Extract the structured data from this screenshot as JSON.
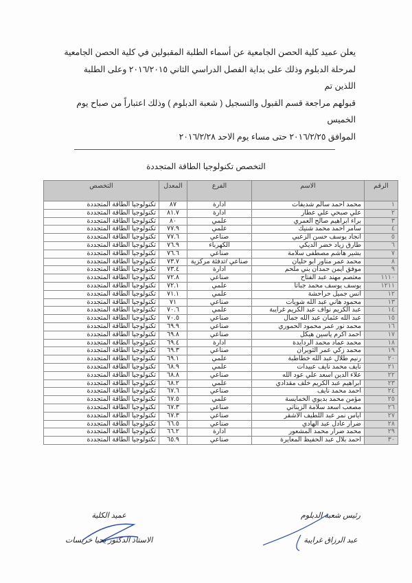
{
  "announcement": [
    "يعلن عميد كلية الحصن الجامعية عن أسماء الطلبة المقبولين في كلية الحصن الجامعية",
    "لمرحلة الدبلوم وذلك على بداية الفصل الدراسي الثاني ٢٠١٦/٢٠١٥ وعلى الطلبة اللذين تم",
    "قبولهم مراجعة قسم القبول والتسجيل ( شعبة الدبلوم ) وذلك اعتباراً من صباح يوم الخميس",
    "الموافق ٢٠١٦/٢/٢٥ حتى مساء يوم الاحد ٢٠١٦/٢/٢٨"
  ],
  "title": "التخصص تكنولوجيا الطاقة المتجددة",
  "table": {
    "headers": [
      "الرقم",
      "الاسم",
      "الفرع",
      "المعدل",
      "التخصص"
    ],
    "rows": [
      [
        "١",
        "محمد احمد سالم شديفات",
        "ادارة",
        "٨٧",
        "تكنولوجيا الطاقة المتجددة"
      ],
      [
        "٢",
        "علي صبحي علي عطار",
        "ادارة",
        "٨١.٧",
        "تكنولوجيا الطاقة المتجددة"
      ],
      [
        "٣",
        "براء ابراهيم صالح العمري",
        "علمي",
        "٨٠",
        "تكنولوجيا الطاقة المتجددة"
      ],
      [
        "٤",
        "سامر احمد محمد شنيك",
        "علمي",
        "٧٧.٩",
        "تكنولوجيا الطاقة المتجددة"
      ],
      [
        "٥",
        "انجاد يوسف حسن الزعبي",
        "صناعي",
        "٧٧.٦",
        "تكنولوجيا الطاقة المتجددة"
      ],
      [
        "٦",
        "طارق زياد خضر الديكي",
        "الكهرباء",
        "٧٦.٩",
        "تكنولوجيا الطاقة المتجددة"
      ],
      [
        "٧",
        "بشير هاشم مصطفى سلامة",
        "صناعي",
        "٧٦.٦",
        "تكنولوجيا الطاقة المتجددة"
      ],
      [
        "٨",
        "محمد عمر مناور ابو حليان",
        "صناعي /تدفئة مركزية",
        "٧٣.٧",
        "تكنولوجيا الطاقة المتجددة"
      ],
      [
        "٩",
        "موفق ايمن حمدان بني ملحم",
        "ادارة",
        "٧٣.٤",
        "تكنولوجيا الطاقة المتجددة"
      ],
      [
        "١١١٠",
        "معتصم مهند عبد الفتاح",
        "صناعي",
        "٧٢.٨",
        "تكنولوجيا الطاقة المتجددة"
      ],
      [
        "١٢١١",
        "يوسف يوسف محمد جباتا",
        "علمي",
        "٧٢.١",
        "تكنولوجيا الطاقة المتجددة"
      ],
      [
        "١٢",
        "انس جميل حراحشة",
        "علمي",
        "٧١.١",
        "تكنولوجيا الطاقة المتجددة"
      ],
      [
        "١٣",
        "محمود هاني عبد الله شويات",
        "صناعي",
        "٧١",
        "تكنولوجيا الطاقة المتجددة"
      ],
      [
        "١٤",
        "عبد الكريم نواف عبد الكريم غرايبة",
        "علمي",
        "٧٠.٦",
        "تكنولوجيا الطاقة المتجددة"
      ],
      [
        "١٥",
        "عبد الله عثمان عبد الله جمال",
        "صناعي",
        "٧٠.٥",
        "تكنولوجيا الطاقة المتجددة"
      ],
      [
        "١٦",
        "محمد نور عمر محمود الحموري",
        "صناعي",
        "٦٩.٩",
        "تكنولوجيا الطاقة المتجددة"
      ],
      [
        "١٧",
        "احمد اكرم ياسين هيكل",
        "صناعي",
        "٦٩.٨",
        "تكنولوجيا الطاقة المتجددة"
      ],
      [
        "١٨",
        "محمد عماد محمد الردايدة",
        "ادارة",
        "٦٩.٤",
        "تكنولوجيا الطاقة المتجددة"
      ],
      [
        "١٩",
        "محمد زكي عمر الثويران",
        "صناعي",
        "٦٩.٣",
        "تكنولوجيا الطاقة المتجددة"
      ],
      [
        "٢٠",
        "رنيم طلال عبد الله خطاطبة",
        "علمي",
        "٦٩.١",
        "تكنولوجيا الطاقة المتجددة"
      ],
      [
        "٢١",
        "نايف محمد نايف عبيدات",
        "علمي",
        "٦٨.٩",
        "تكنولوجيا الطاقة المتجددة"
      ],
      [
        "٢٢",
        "علاء الدين اسعد علي عود الله",
        "صناعي",
        "٦٨.٨",
        "تكنولوجيا الطاقة المتجددة"
      ],
      [
        "٢٣",
        "ابراهيم عبد الكريم خلف مقدادي",
        "علمي",
        "٦٨.٢",
        "تكنولوجيا الطاقة المتجددة"
      ],
      [
        "٢٤",
        "احمد محمد نايف",
        "صناعي",
        "٦٧.٦",
        "تكنولوجيا الطاقة المتجددة"
      ],
      [
        "٢٥",
        "مؤمن محمد بديوي الخمايسة",
        "علمي",
        "٦٧.٥",
        "تكنولوجيا الطاقة المتجددة"
      ],
      [
        "٢٦",
        "مصعب اسعد سلامة الزيناتي",
        "صناعي",
        "٦٧.٣",
        "تكنولوجيا الطاقة المتجددة"
      ],
      [
        "٢٧",
        "اياس نمر عبد اللطيف الاشقر",
        "صناعي",
        "٦٧.٣",
        "تكنولوجيا الطاقة المتجددة"
      ],
      [
        "٢٨",
        "ضرار عادل عبد الهادي",
        "صناعي",
        "٦٦.٥",
        "تكنولوجيا الطاقة المتجددة"
      ],
      [
        "٢٩",
        "محمد ضرار محمد المشعور",
        "ادارة",
        "٦٦.٢",
        "تكنولوجيا الطاقة المتجددة"
      ],
      [
        "٣٠",
        "احمد بلال عبد الحفيظ المعايرة",
        "صناعي",
        "٦٥.٩",
        "تكنولوجيا الطاقة المتجددة"
      ]
    ]
  },
  "signatures": {
    "right": {
      "role": "رئيس شعبة الدبلوم",
      "name": "عبد الرزاق غرايبة"
    },
    "left": {
      "role": "عميد الكلية",
      "name": "الاستاذ الدكتور يحيا خريسات"
    },
    "ink_color": "#2a4fb0"
  }
}
